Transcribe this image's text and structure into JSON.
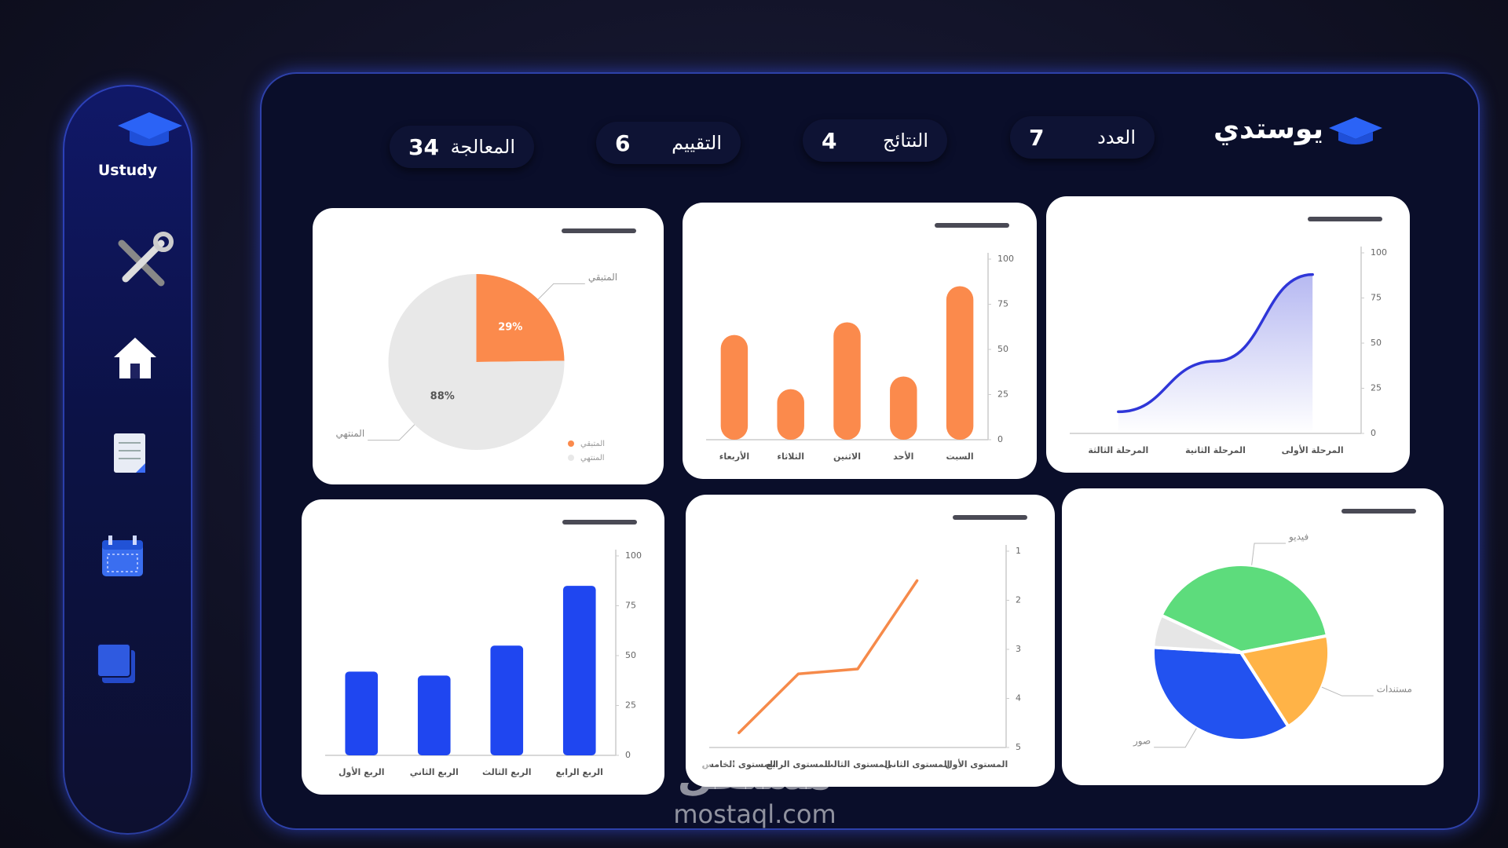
{
  "sidebar": {
    "brand": "Ustudy"
  },
  "header": {
    "brand": "يوستدي"
  },
  "stats": [
    {
      "label": "المعالجة",
      "value": 34
    },
    {
      "label": "التقييم",
      "value": 6
    },
    {
      "label": "النتائج",
      "value": 4
    },
    {
      "label": "العدد",
      "value": 7
    }
  ],
  "chart_data": [
    {
      "type": "pie",
      "labels": [
        "المتبقي",
        "المنتهي"
      ],
      "values": [
        29,
        88
      ],
      "value_labels": [
        "29%",
        "88%"
      ],
      "colors": [
        "#fb8a4c",
        "#e8e8e8"
      ],
      "legend": "bottom-right"
    },
    {
      "type": "bar",
      "categories": [
        "الأربعاء",
        "الثلاثاء",
        "الاثنين",
        "الأحد",
        "السبت"
      ],
      "values": [
        58,
        28,
        65,
        35,
        85
      ],
      "color": "#fb8a4c",
      "ylim": [
        0,
        100
      ],
      "yticks": [
        0,
        25,
        50,
        75,
        100
      ]
    },
    {
      "type": "area",
      "categories": [
        "المرحلة الثالثة",
        "المرحلة الثانية",
        "المرحلة الأولى"
      ],
      "values": [
        12,
        40,
        88
      ],
      "color": "#2f36d8",
      "ylim": [
        0,
        100
      ],
      "yticks": [
        0,
        25,
        50,
        75,
        100
      ]
    },
    {
      "type": "bar",
      "categories": [
        "الربع الأول",
        "الربع الثاني",
        "الربع الثالث",
        "الربع الرابع"
      ],
      "values": [
        42,
        40,
        55,
        85
      ],
      "color": "#1f46f0",
      "ylim": [
        0,
        100
      ],
      "yticks": [
        0,
        25,
        50,
        75,
        100
      ]
    },
    {
      "type": "line",
      "categories": [
        "المستوى الخامس",
        "المستوى الرابع",
        "المستوى الثالث",
        "المستوى الثاني",
        "المستوى الأول"
      ],
      "values": [
        4.7,
        3.5,
        3.4,
        1.6,
        null
      ],
      "color": "#f68a4a",
      "ylim": [
        5,
        1
      ],
      "yticks": [
        1,
        2,
        3,
        4,
        5
      ]
    },
    {
      "type": "pie",
      "labels": [
        "فيديو",
        "مستندات",
        "صور",
        null
      ],
      "values": [
        40,
        19,
        35,
        6
      ],
      "colors": [
        "#5ddc7c",
        "#ffb347",
        "#2252f0",
        "#e6e6e6"
      ]
    }
  ],
  "watermark": {
    "arabic": "مستقل",
    "url": "mostaql.com"
  }
}
